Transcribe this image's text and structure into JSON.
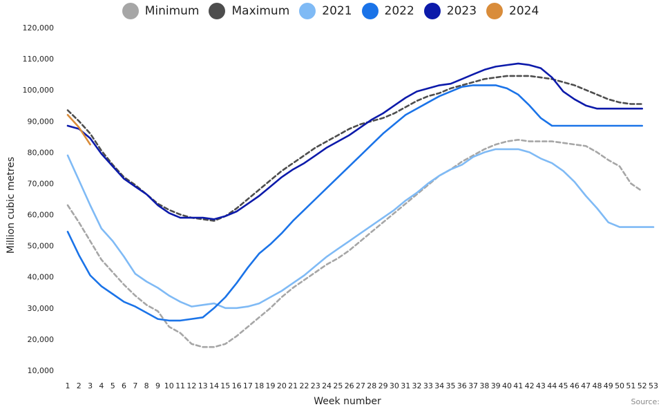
{
  "chart_data": {
    "type": "line",
    "xlabel": "Week number",
    "ylabel": "Million cubic metres",
    "ylim": [
      10000,
      120000
    ],
    "yticks": [
      10000,
      20000,
      30000,
      40000,
      50000,
      60000,
      70000,
      80000,
      90000,
      100000,
      110000,
      120000
    ],
    "xticks": [
      1,
      2,
      3,
      4,
      5,
      6,
      7,
      8,
      9,
      10,
      11,
      12,
      13,
      14,
      15,
      16,
      17,
      18,
      19,
      20,
      21,
      22,
      23,
      24,
      25,
      26,
      27,
      28,
      29,
      30,
      31,
      32,
      33,
      34,
      35,
      36,
      37,
      38,
      39,
      40,
      41,
      42,
      43,
      44,
      45,
      46,
      47,
      48,
      49,
      50,
      51,
      52,
      53
    ],
    "xlim": [
      1,
      53
    ],
    "grid": false,
    "legend_position": "top-center",
    "source_label": "Source:",
    "series": [
      {
        "name": "Minimum",
        "color": "#a6a6a6",
        "dashed": true,
        "x": [
          1,
          2,
          3,
          4,
          5,
          6,
          7,
          8,
          9,
          10,
          11,
          12,
          13,
          14,
          15,
          16,
          17,
          18,
          19,
          20,
          21,
          22,
          23,
          24,
          25,
          26,
          27,
          28,
          29,
          30,
          31,
          32,
          33,
          34,
          35,
          36,
          37,
          38,
          39,
          40,
          41,
          42,
          43,
          44,
          45,
          46,
          47,
          48,
          49,
          50,
          51,
          52
        ],
        "values": [
          63000,
          57500,
          51500,
          45500,
          41500,
          37500,
          34000,
          31000,
          29000,
          24000,
          22000,
          18500,
          17500,
          17500,
          18500,
          21000,
          24000,
          27000,
          30000,
          33500,
          36500,
          39000,
          41500,
          44000,
          46000,
          48500,
          51500,
          54500,
          57500,
          60500,
          63500,
          66500,
          69500,
          72500,
          74500,
          77000,
          79000,
          81000,
          82500,
          83500,
          84000,
          83500,
          83500,
          83500,
          83000,
          82500,
          82000,
          80000,
          77500,
          75500,
          70000,
          67500
        ]
      },
      {
        "name": "Maximum",
        "color": "#4d4d4d",
        "dashed": true,
        "x": [
          1,
          2,
          3,
          4,
          5,
          6,
          7,
          8,
          9,
          10,
          11,
          12,
          13,
          14,
          15,
          16,
          17,
          18,
          19,
          20,
          21,
          22,
          23,
          24,
          25,
          26,
          27,
          28,
          29,
          30,
          31,
          32,
          33,
          34,
          35,
          36,
          37,
          38,
          39,
          40,
          41,
          42,
          43,
          44,
          45,
          46,
          47,
          48,
          49,
          50,
          51,
          52
        ],
        "values": [
          93500,
          90000,
          86000,
          80500,
          76000,
          72000,
          69500,
          66500,
          63500,
          61500,
          60000,
          59000,
          58500,
          58000,
          59500,
          62000,
          65000,
          68000,
          71000,
          74000,
          76500,
          79000,
          81500,
          83500,
          85500,
          87500,
          89000,
          90000,
          91000,
          92500,
          94500,
          96500,
          98000,
          99000,
          100500,
          101500,
          102500,
          103500,
          104000,
          104500,
          104500,
          104500,
          104000,
          103500,
          102500,
          101500,
          100000,
          98500,
          97000,
          96000,
          95500,
          95500
        ]
      },
      {
        "name": "2021",
        "color": "#7fbaf5",
        "dashed": false,
        "x": [
          1,
          2,
          3,
          4,
          5,
          6,
          7,
          8,
          9,
          10,
          11,
          12,
          13,
          14,
          15,
          16,
          17,
          18,
          19,
          20,
          21,
          22,
          23,
          24,
          25,
          26,
          27,
          28,
          29,
          30,
          31,
          32,
          33,
          34,
          35,
          36,
          37,
          38,
          39,
          40,
          41,
          42,
          43,
          44,
          45,
          46,
          47,
          48,
          49,
          50,
          51,
          52,
          53
        ],
        "values": [
          79000,
          71000,
          63000,
          55500,
          51500,
          46500,
          41000,
          38500,
          36500,
          34000,
          32000,
          30500,
          31000,
          31500,
          30000,
          30000,
          30500,
          31500,
          33500,
          35500,
          38000,
          40500,
          43500,
          46500,
          49000,
          51500,
          54000,
          56500,
          59000,
          61500,
          64500,
          67000,
          70000,
          72500,
          74500,
          76000,
          78500,
          80000,
          81000,
          81000,
          81000,
          80000,
          78000,
          76500,
          74000,
          70500,
          66000,
          62000,
          57500,
          56000,
          56000,
          56000,
          56000
        ]
      },
      {
        "name": "2022",
        "color": "#1a73e8",
        "dashed": false,
        "x": [
          1,
          2,
          3,
          4,
          5,
          6,
          7,
          8,
          9,
          10,
          11,
          12,
          13,
          14,
          15,
          16,
          17,
          18,
          19,
          20,
          21,
          22,
          23,
          24,
          25,
          26,
          27,
          28,
          29,
          30,
          31,
          32,
          33,
          34,
          35,
          36,
          37,
          38,
          39,
          40,
          41,
          42,
          43,
          44,
          45,
          46,
          47,
          48,
          49,
          50,
          51,
          52
        ],
        "values": [
          54500,
          47000,
          40500,
          37000,
          34500,
          32000,
          30500,
          28500,
          26500,
          26000,
          26000,
          26500,
          27000,
          30000,
          33500,
          38000,
          43000,
          47500,
          50500,
          54000,
          58000,
          61500,
          65000,
          68500,
          72000,
          75500,
          79000,
          82500,
          86000,
          89000,
          92000,
          94000,
          96000,
          98000,
          99500,
          101000,
          101500,
          101500,
          101500,
          100500,
          98500,
          95000,
          91000,
          88500,
          88500,
          88500,
          88500,
          88500,
          88500,
          88500,
          88500,
          88500
        ]
      },
      {
        "name": "2023",
        "color": "#0c1aaa",
        "dashed": false,
        "x": [
          1,
          2,
          3,
          4,
          5,
          6,
          7,
          8,
          9,
          10,
          11,
          12,
          13,
          14,
          15,
          16,
          17,
          18,
          19,
          20,
          21,
          22,
          23,
          24,
          25,
          26,
          27,
          28,
          29,
          30,
          31,
          32,
          33,
          34,
          35,
          36,
          37,
          38,
          39,
          40,
          41,
          42,
          43,
          44,
          45,
          46,
          47,
          48,
          49,
          50,
          51,
          52
        ],
        "values": [
          88500,
          87500,
          84500,
          79500,
          75500,
          71500,
          69000,
          66500,
          63000,
          60500,
          59000,
          59000,
          59000,
          58500,
          59500,
          61000,
          63500,
          66000,
          69000,
          72000,
          74500,
          76500,
          79000,
          81500,
          83500,
          85500,
          88000,
          90500,
          92500,
          95000,
          97500,
          99500,
          100500,
          101500,
          102000,
          103500,
          105000,
          106500,
          107500,
          108000,
          108500,
          108000,
          107000,
          104000,
          99500,
          97000,
          95000,
          94000,
          94000,
          94000,
          94000,
          94000
        ]
      },
      {
        "name": "2024",
        "color": "#d98c3a",
        "dashed": false,
        "x": [
          1,
          2,
          3
        ],
        "values": [
          92000,
          88000,
          82500
        ]
      }
    ]
  }
}
